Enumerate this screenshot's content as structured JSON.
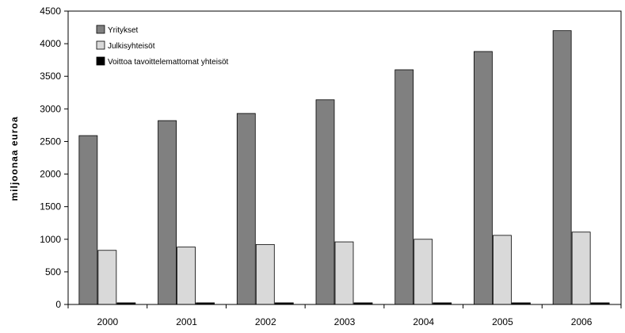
{
  "chart_data": {
    "type": "bar",
    "title": "",
    "xlabel": "",
    "ylabel": "miljoonaa euroa",
    "ylim": [
      0,
      4500
    ],
    "yticks": [
      0,
      500,
      1000,
      1500,
      2000,
      2500,
      3000,
      3500,
      4000,
      4500
    ],
    "grid": false,
    "legend_position": "top-left",
    "categories": [
      "2000",
      "2001",
      "2002",
      "2003",
      "2004",
      "2005",
      "2006"
    ],
    "series": [
      {
        "name": "Yritykset",
        "color": "#808080",
        "values": [
          2590,
          2820,
          2930,
          3140,
          3600,
          3880,
          4200
        ]
      },
      {
        "name": "Julkisyhteisöt",
        "color": "#d9d9d9",
        "values": [
          830,
          880,
          920,
          960,
          1000,
          1060,
          1110
        ]
      },
      {
        "name": "Voittoa tavoittelemattomat yhteisöt",
        "color": "#000000",
        "values": [
          25,
          25,
          25,
          25,
          25,
          25,
          25
        ]
      }
    ]
  }
}
